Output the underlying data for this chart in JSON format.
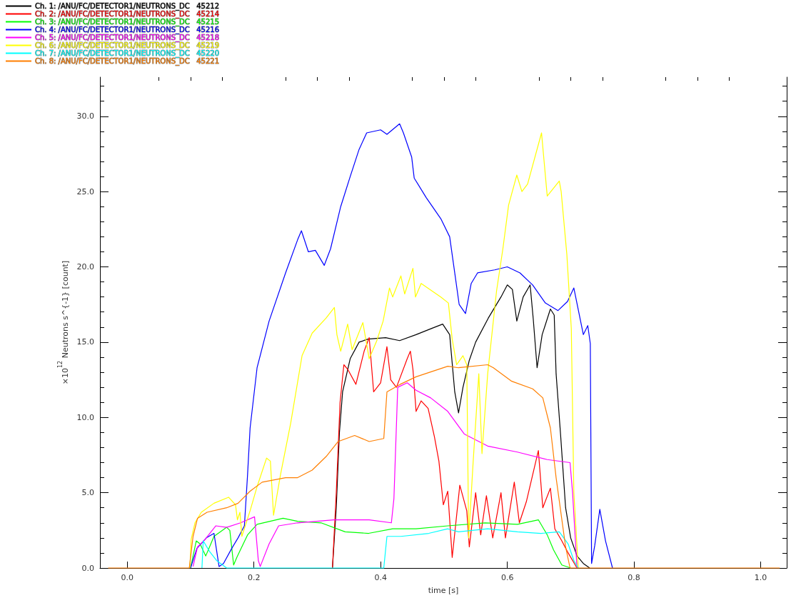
{
  "chart_data": {
    "type": "line",
    "xlabel": "time [s]",
    "ylabel": "×10$^{12}$ Neutrons s^{-1} [count]",
    "xlim": [
      -0.043,
      1.041
    ],
    "ylim": [
      0,
      32.6
    ],
    "xticks": [
      {
        "value": 0,
        "label": "0.0"
      },
      {
        "value": 0.05,
        "label": null
      },
      {
        "value": 0.1,
        "label": null
      },
      {
        "value": 0.15,
        "label": null
      },
      {
        "value": 0.2,
        "label": "0.2"
      },
      {
        "value": 0.25,
        "label": null
      },
      {
        "value": 0.3,
        "label": null
      },
      {
        "value": 0.35,
        "label": null
      },
      {
        "value": 0.4,
        "label": "0.4"
      },
      {
        "value": 0.45,
        "label": null
      },
      {
        "value": 0.5,
        "label": null
      },
      {
        "value": 0.55,
        "label": null
      },
      {
        "value": 0.6,
        "label": "0.6"
      },
      {
        "value": 0.65,
        "label": null
      },
      {
        "value": 0.7,
        "label": null
      },
      {
        "value": 0.75,
        "label": null
      },
      {
        "value": 0.8,
        "label": "0.8"
      },
      {
        "value": 0.85,
        "label": null
      },
      {
        "value": 0.9,
        "label": null
      },
      {
        "value": 0.95,
        "label": null
      },
      {
        "value": 1,
        "label": "1.0"
      }
    ],
    "yticks": [
      {
        "value": 0,
        "label": "0.0"
      },
      {
        "value": 1,
        "label": null
      },
      {
        "value": 2,
        "label": null
      },
      {
        "value": 3,
        "label": null
      },
      {
        "value": 4,
        "label": null
      },
      {
        "value": 5,
        "label": "5.0"
      },
      {
        "value": 6,
        "label": null
      },
      {
        "value": 7,
        "label": null
      },
      {
        "value": 8,
        "label": null
      },
      {
        "value": 9,
        "label": null
      },
      {
        "value": 10,
        "label": "10.0"
      },
      {
        "value": 11,
        "label": null
      },
      {
        "value": 12,
        "label": null
      },
      {
        "value": 13,
        "label": null
      },
      {
        "value": 14,
        "label": null
      },
      {
        "value": 15,
        "label": "15.0"
      },
      {
        "value": 16,
        "label": null
      },
      {
        "value": 17,
        "label": null
      },
      {
        "value": 18,
        "label": null
      },
      {
        "value": 19,
        "label": null
      },
      {
        "value": 20,
        "label": "20.0"
      },
      {
        "value": 21,
        "label": null
      },
      {
        "value": 22,
        "label": null
      },
      {
        "value": 23,
        "label": null
      },
      {
        "value": 24,
        "label": null
      },
      {
        "value": 25,
        "label": "25.0"
      },
      {
        "value": 26,
        "label": null
      },
      {
        "value": 27,
        "label": null
      },
      {
        "value": 28,
        "label": null
      },
      {
        "value": 29,
        "label": null
      },
      {
        "value": 30,
        "label": "30.0"
      },
      {
        "value": 31,
        "label": null
      },
      {
        "value": 32,
        "label": null
      }
    ],
    "legend": "top left",
    "marker": "none",
    "line_style": "solid",
    "series": [
      {
        "name": "Ch. 1: /ANU/FC/DETECTOR1/NEUTRONS_DC   45212",
        "color": "#000000",
        "x": [
          0.324,
          0.33,
          0.335,
          0.34,
          0.352,
          0.366,
          0.38,
          0.408,
          0.43,
          0.456,
          0.48,
          0.498,
          0.509,
          0.517,
          0.523,
          0.53,
          0.54,
          0.55,
          0.57,
          0.59,
          0.6,
          0.608,
          0.615,
          0.625,
          0.636,
          0.641,
          0.647,
          0.655,
          0.668,
          0.674,
          0.677,
          0.684,
          0.692,
          0.7,
          0.71,
          0.72,
          0.73
        ],
        "values": [
          0,
          4,
          9,
          11.7,
          13.9,
          15,
          15.2,
          15.3,
          15.1,
          15.5,
          15.9,
          16.2,
          15.5,
          11.7,
          10.3,
          12,
          13.8,
          15,
          16.6,
          18,
          18.8,
          18.5,
          16.4,
          18,
          18.8,
          16.5,
          13.3,
          15.5,
          17.2,
          16.8,
          12.9,
          8.9,
          4,
          2,
          0.8,
          0.3,
          0
        ]
      },
      {
        "name": "Ch. 2: /ANU/FC/DETECTOR1/NEUTRONS_DC   45214",
        "color": "#ff0000",
        "x": [
          0.324,
          0.33,
          0.336,
          0.342,
          0.348,
          0.361,
          0.374,
          0.382,
          0.389,
          0.4,
          0.41,
          0.416,
          0.425,
          0.442,
          0.447,
          0.451,
          0.456,
          0.464,
          0.475,
          0.485,
          0.492,
          0.499,
          0.506,
          0.513,
          0.525,
          0.536,
          0.54,
          0.55,
          0.558,
          0.567,
          0.577,
          0.59,
          0.597,
          0.611,
          0.619,
          0.63,
          0.649,
          0.656,
          0.668,
          0.675,
          0.686,
          0.696,
          0.71
        ],
        "values": [
          0,
          5,
          11,
          13.5,
          13.2,
          12.2,
          14.4,
          15.3,
          11.7,
          12.3,
          14.7,
          12.5,
          12,
          13.9,
          14.4,
          13.2,
          10.4,
          11.1,
          10.6,
          8.7,
          7.1,
          4.2,
          5.1,
          0.7,
          5.5,
          3.8,
          1.4,
          5,
          2.2,
          4.8,
          2,
          5,
          2,
          5.7,
          3,
          4.4,
          7.8,
          4,
          5.3,
          2.6,
          1.8,
          1,
          0
        ]
      },
      {
        "name": "Ch. 3: /ANU/FC/DETECTOR1/NEUTRONS_DC   45215",
        "color": "#00ff00",
        "x": [
          0.1,
          0.109,
          0.115,
          0.124,
          0.137,
          0.157,
          0.162,
          0.168,
          0.173,
          0.19,
          0.205,
          0.246,
          0.269,
          0.306,
          0.344,
          0.381,
          0.419,
          0.456,
          0.506,
          0.565,
          0.616,
          0.649,
          0.663,
          0.673,
          0.686,
          0.7
        ],
        "values": [
          0,
          1.8,
          1.6,
          0.8,
          2.1,
          2.7,
          2.5,
          0.2,
          0.7,
          2.2,
          2.9,
          3.3,
          3.1,
          3,
          2.4,
          2.3,
          2.6,
          2.6,
          2.8,
          3,
          2.9,
          3.2,
          2.2,
          1.2,
          0.2,
          0
        ]
      },
      {
        "name": "Ch. 4: /ANU/FC/DETECTOR1/NEUTRONS_DC   45216",
        "color": "#0000ff",
        "x": [
          0.1,
          0.11,
          0.125,
          0.137,
          0.145,
          0.152,
          0.165,
          0.175,
          0.185,
          0.19,
          0.194,
          0.205,
          0.224,
          0.25,
          0.269,
          0.275,
          0.286,
          0.297,
          0.311,
          0.321,
          0.337,
          0.352,
          0.366,
          0.378,
          0.4,
          0.41,
          0.43,
          0.436,
          0.449,
          0.453,
          0.472,
          0.495,
          0.509,
          0.517,
          0.524,
          0.534,
          0.543,
          0.553,
          0.58,
          0.6,
          0.62,
          0.64,
          0.66,
          0.68,
          0.695,
          0.705,
          0.72,
          0.727,
          0.731,
          0.733,
          0.738,
          0.746,
          0.755,
          0.766
        ],
        "values": [
          0,
          1.3,
          2.0,
          2.3,
          0.1,
          0.3,
          1.3,
          2.0,
          2.8,
          6.2,
          9.3,
          13.3,
          16.4,
          19.6,
          21.8,
          22.4,
          21,
          21.1,
          20.1,
          21.2,
          24,
          26,
          27.8,
          28.9,
          29.1,
          28.8,
          29.5,
          28.9,
          27.3,
          25.9,
          24.6,
          23.2,
          22,
          19.6,
          17.5,
          16.9,
          18.9,
          19.6,
          19.8,
          20,
          19.6,
          18.8,
          17.6,
          17.1,
          17.7,
          18.6,
          15.5,
          16.1,
          14.9,
          0.3,
          1.5,
          3.9,
          1.8,
          0
        ]
      },
      {
        "name": "Ch. 5: /ANU/FC/DETECTOR1/NEUTRONS_DC   45218",
        "color": "#ff00ff",
        "x": [
          0.104,
          0.111,
          0.123,
          0.14,
          0.157,
          0.179,
          0.201,
          0.207,
          0.21,
          0.224,
          0.239,
          0.269,
          0.326,
          0.382,
          0.417,
          0.421,
          0.427,
          0.442,
          0.456,
          0.479,
          0.506,
          0.532,
          0.569,
          0.616,
          0.663,
          0.699,
          0.703,
          0.71
        ],
        "values": [
          0.1,
          1.4,
          1.9,
          2.8,
          2.7,
          3,
          3.4,
          0.5,
          0.1,
          1.6,
          2.8,
          3,
          3.2,
          3.2,
          3,
          4.6,
          12,
          12.3,
          11.8,
          11.3,
          10.4,
          8.9,
          8.1,
          7.7,
          7.2,
          7,
          5,
          0
        ]
      },
      {
        "name": "Ch. 6: /ANU/FC/DETECTOR1/NEUTRONS_DC   45219",
        "color": "#ffff00",
        "x": [
          0.099,
          0.101,
          0.107,
          0.117,
          0.137,
          0.16,
          0.171,
          0.174,
          0.178,
          0.181,
          0.194,
          0.205,
          0.22,
          0.226,
          0.231,
          0.242,
          0.258,
          0.276,
          0.292,
          0.314,
          0.327,
          0.331,
          0.337,
          0.348,
          0.355,
          0.372,
          0.382,
          0.394,
          0.404,
          0.414,
          0.419,
          0.432,
          0.438,
          0.451,
          0.455,
          0.464,
          0.495,
          0.507,
          0.513,
          0.52,
          0.53,
          0.536,
          0.539,
          0.546,
          0.555,
          0.56,
          0.569,
          0.583,
          0.593,
          0.602,
          0.615,
          0.623,
          0.632,
          0.654,
          0.663,
          0.682,
          0.685,
          0.694,
          0.701,
          0.705,
          0.712
        ],
        "values": [
          0,
          1.9,
          3,
          3.7,
          4.3,
          4.7,
          4.2,
          3.2,
          3.7,
          2.1,
          3.8,
          5.4,
          7.3,
          7.1,
          3.5,
          6.2,
          9.6,
          14.1,
          15.6,
          16.6,
          17.3,
          15.5,
          14.4,
          16.2,
          14.5,
          16.3,
          13.9,
          15.1,
          16.4,
          18.6,
          18,
          19.4,
          18.2,
          19.9,
          18,
          18.9,
          18,
          17.6,
          15.2,
          13.5,
          14.1,
          13.5,
          2,
          7,
          12.9,
          7.6,
          12.9,
          18.4,
          21.2,
          24.1,
          26.1,
          25,
          25.5,
          28.9,
          24.7,
          25.7,
          25,
          20.8,
          15.9,
          5,
          0
        ]
      },
      {
        "name": "Ch. 7: /ANU/FC/DETECTOR1/NEUTRONS_DC   45220",
        "color": "#00ffff",
        "x": [
          0.118,
          0.12,
          0.13,
          0.141,
          0.157,
          0.405,
          0.41,
          0.432,
          0.476,
          0.506,
          0.523,
          0.569,
          0.616,
          0.653,
          0.682,
          0.696,
          0.705,
          0.712
        ],
        "values": [
          0,
          1.8,
          1.1,
          0.5,
          0,
          0,
          2.1,
          2.1,
          2.3,
          2.6,
          2.4,
          2.6,
          2.4,
          2.3,
          2.4,
          1.6,
          0.5,
          0
        ]
      },
      {
        "name": "Ch. 8: /ANU/FC/DETECTOR1/NEUTRONS_DC   45221",
        "color": "#ff7f00",
        "x": [
          -0.03,
          0.098,
          0.104,
          0.111,
          0.126,
          0.157,
          0.175,
          0.194,
          0.213,
          0.25,
          0.269,
          0.292,
          0.314,
          0.333,
          0.359,
          0.382,
          0.405,
          0.41,
          0.431,
          0.456,
          0.506,
          0.523,
          0.569,
          0.578,
          0.607,
          0.64,
          0.656,
          0.668,
          0.677,
          0.692,
          0.699,
          1.03
        ],
        "values": [
          0,
          0,
          2.1,
          3.3,
          3.7,
          4,
          4.3,
          5.1,
          5.7,
          6,
          6,
          6.5,
          7.4,
          8.4,
          8.8,
          8.4,
          8.6,
          11.7,
          12.2,
          12.7,
          13.4,
          13.3,
          13.5,
          13.3,
          12.4,
          11.9,
          11.3,
          9.3,
          6,
          1.4,
          0,
          0
        ]
      }
    ]
  }
}
